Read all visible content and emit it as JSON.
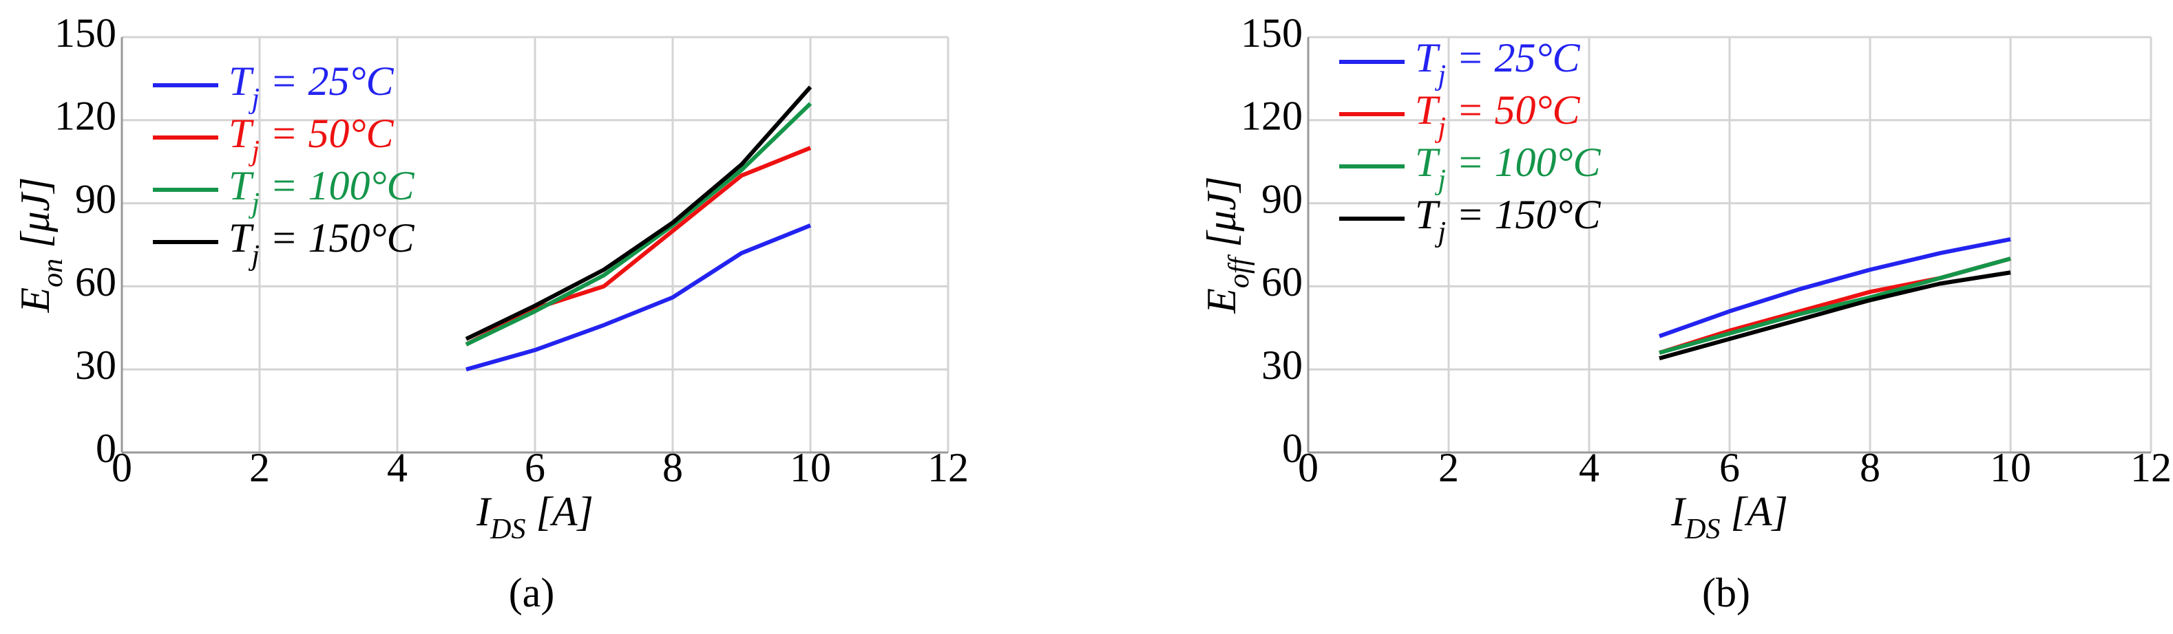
{
  "chart_data": [
    {
      "type": "line",
      "caption": "(a)",
      "xlabel": [
        "I",
        "DS",
        " [A]"
      ],
      "ylabel": [
        "E",
        "on",
        " [μJ]"
      ],
      "x": [
        5,
        6,
        7,
        8,
        9,
        10
      ],
      "xlim": [
        0,
        12
      ],
      "ylim": [
        0,
        150
      ],
      "xticks": [
        0,
        2,
        4,
        6,
        8,
        10,
        12
      ],
      "yticks": [
        0,
        30,
        60,
        90,
        120,
        150
      ],
      "grid": true,
      "legend": "upper left",
      "series": [
        {
          "name": [
            "T",
            "j",
            " = 25°C"
          ],
          "color": "#2323f0",
          "values": [
            30,
            37,
            46,
            56,
            72,
            82
          ]
        },
        {
          "name": [
            "T",
            "j",
            " = 50°C"
          ],
          "color": "#ee1111",
          "values": [
            39,
            52,
            60,
            80,
            100,
            110
          ]
        },
        {
          "name": [
            "T",
            "j",
            " = 100°C"
          ],
          "color": "#15954a",
          "values": [
            39,
            51,
            64,
            82,
            102,
            126
          ]
        },
        {
          "name": [
            "T",
            "j",
            " = 150°C"
          ],
          "color": "#000000",
          "values": [
            41,
            53,
            66,
            83,
            104,
            132
          ]
        }
      ]
    },
    {
      "type": "line",
      "caption": "(b)",
      "xlabel": [
        "I",
        "DS",
        " [A]"
      ],
      "ylabel": [
        "E",
        "off",
        " [μJ]"
      ],
      "x": [
        5,
        6,
        7,
        8,
        9,
        10
      ],
      "xlim": [
        0,
        12
      ],
      "ylim": [
        0,
        150
      ],
      "xticks": [
        0,
        2,
        4,
        6,
        8,
        10,
        12
      ],
      "yticks": [
        0,
        30,
        60,
        90,
        120,
        150
      ],
      "grid": true,
      "legend": "upper left",
      "series": [
        {
          "name": [
            "T",
            "j",
            " = 25°C"
          ],
          "color": "#2323f0",
          "values": [
            42,
            51,
            59,
            66,
            72,
            77
          ]
        },
        {
          "name": [
            "T",
            "j",
            " = 50°C"
          ],
          "color": "#ee1111",
          "values": [
            36,
            44,
            51,
            58,
            63,
            70
          ]
        },
        {
          "name": [
            "T",
            "j",
            " = 100°C"
          ],
          "color": "#15954a",
          "values": [
            36,
            43,
            50,
            56,
            63,
            70
          ]
        },
        {
          "name": [
            "T",
            "j",
            " = 150°C"
          ],
          "color": "#000000",
          "values": [
            34,
            41,
            48,
            55,
            61,
            65
          ]
        }
      ]
    }
  ]
}
